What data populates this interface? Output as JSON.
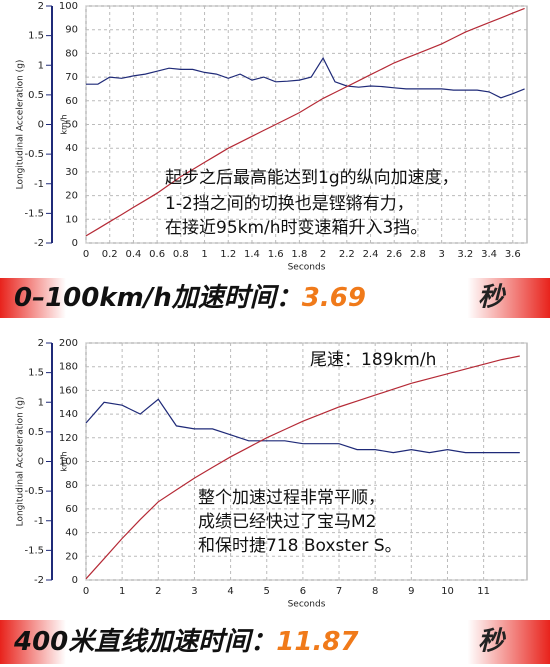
{
  "chart_data": [
    {
      "type": "line",
      "x_label": "Seconds",
      "y_label": "Longitudinal Acceleration (g)",
      "y2_label": "km/h",
      "xlim": [
        0,
        3.72
      ],
      "xticks": [
        0,
        0.2,
        0.4,
        0.6,
        0.8,
        1,
        1.2,
        1.4,
        1.6,
        1.8,
        2,
        2.2,
        2.4,
        2.6,
        2.8,
        3,
        3.2,
        3.4,
        3.6
      ],
      "ylim": [
        -2,
        2
      ],
      "yticks": [
        -2,
        -1.5,
        -1,
        -0.5,
        0,
        0.5,
        1,
        1.5,
        2
      ],
      "y2lim": [
        0,
        100
      ],
      "y2ticks": [
        0,
        10,
        20,
        30,
        40,
        50,
        60,
        70,
        80,
        90,
        100
      ],
      "x": [
        0,
        0.1,
        0.2,
        0.3,
        0.4,
        0.5,
        0.6,
        0.7,
        0.8,
        0.9,
        1,
        1.1,
        1.2,
        1.3,
        1.4,
        1.5,
        1.6,
        1.7,
        1.8,
        1.9,
        2,
        2.1,
        2.2,
        2.3,
        2.4,
        2.5,
        2.6,
        2.7,
        2.8,
        2.9,
        3,
        3.1,
        3.2,
        3.3,
        3.4,
        3.5,
        3.6,
        3.7
      ],
      "series": [
        {
          "color": "#1f2a78",
          "values": [
            0.68,
            0.68,
            0.8,
            0.78,
            0.82,
            0.85,
            0.9,
            0.95,
            0.93,
            0.93,
            0.88,
            0.85,
            0.78,
            0.85,
            0.75,
            0.8,
            0.72,
            0.73,
            0.75,
            0.8,
            1.12,
            0.72,
            0.65,
            0.63,
            0.65,
            0.64,
            0.62,
            0.6,
            0.6,
            0.6,
            0.6,
            0.58,
            0.58,
            0.58,
            0.55,
            0.45,
            0.52,
            0.6
          ]
        },
        {
          "color": "#b52a36",
          "axis": "y2",
          "values": [
            3,
            6,
            9,
            12,
            15,
            18,
            21,
            24.5,
            28,
            31,
            34,
            37,
            40,
            42.5,
            45,
            47.5,
            50,
            52.5,
            55,
            58,
            61,
            63.5,
            66,
            68.5,
            71,
            73.5,
            76,
            78,
            80,
            82,
            84,
            86.5,
            89,
            91,
            93,
            95,
            97,
            99
          ]
        }
      ],
      "annotations": [
        "起步之后最高能达到1g的纵向加速度，",
        "1-2挡之间的切换也是铿锵有力，",
        "在接近95km/h时变速箱升入3挡。"
      ]
    },
    {
      "type": "line",
      "x_label": "Seconds",
      "y_label": "Longitudinal Acceleration (g)",
      "y2_label": "km/h",
      "xlim": [
        0,
        12.2
      ],
      "xticks": [
        0,
        1,
        2,
        3,
        4,
        5,
        6,
        7,
        8,
        9,
        10,
        11
      ],
      "ylim": [
        -2,
        2
      ],
      "yticks": [
        -2,
        -1.5,
        -1,
        -0.5,
        0,
        0.5,
        1,
        1.5,
        2
      ],
      "y2lim": [
        0,
        200
      ],
      "y2ticks": [
        0,
        20,
        40,
        60,
        80,
        100,
        120,
        140,
        160,
        180,
        200
      ],
      "x": [
        0,
        0.5,
        1,
        1.5,
        2,
        2.5,
        3,
        3.5,
        4,
        4.5,
        5,
        5.5,
        6,
        6.5,
        7,
        7.5,
        8,
        8.5,
        9,
        9.5,
        10,
        10.5,
        11,
        11.5,
        12
      ],
      "series": [
        {
          "color": "#1f2a78",
          "values": [
            0.65,
            1.0,
            0.95,
            0.8,
            1.05,
            0.6,
            0.55,
            0.55,
            0.45,
            0.35,
            0.35,
            0.35,
            0.3,
            0.3,
            0.3,
            0.2,
            0.2,
            0.15,
            0.2,
            0.15,
            0.2,
            0.15,
            0.15,
            0.15,
            0.15
          ]
        },
        {
          "color": "#b52a36",
          "axis": "y2",
          "values": [
            1,
            18,
            35,
            51,
            66,
            76,
            86,
            95,
            104,
            112,
            120,
            127,
            134,
            140,
            146,
            151,
            156,
            161,
            166,
            170,
            174,
            178,
            182,
            186,
            189
          ]
        }
      ],
      "annotations": [
        "尾速：189km/h",
        "整个加速过程非常平顺，",
        "成绩已经快过了宝马M2",
        "和保时捷718 Boxster S。"
      ]
    }
  ],
  "banners": [
    {
      "label": "0–100km/h加速时间：",
      "value": 3.69,
      "unit": "秒"
    },
    {
      "label": "400米直线加速时间：",
      "value": 11.87,
      "unit": "秒"
    }
  ]
}
